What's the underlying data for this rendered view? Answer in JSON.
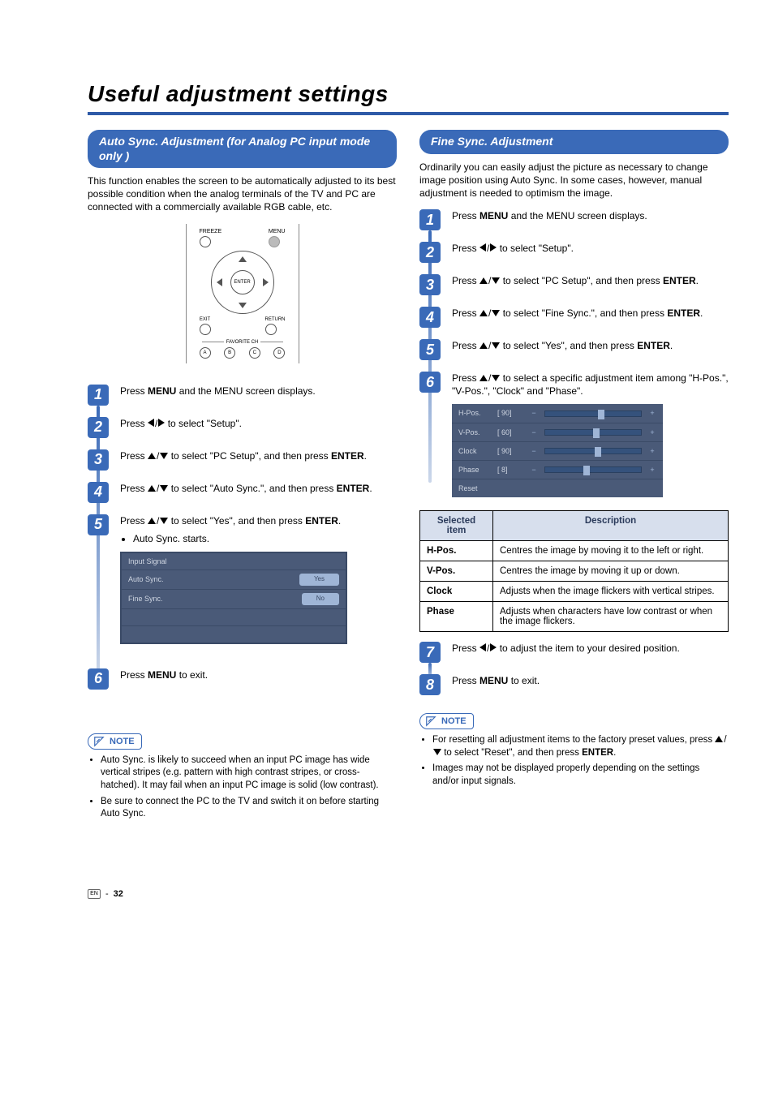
{
  "page_title": "Useful adjustment settings",
  "left": {
    "heading": "Auto Sync. Adjustment (for Analog PC input mode only )",
    "intro": "This function enables the screen to be automatically adjusted to its best possible condition when the analog terminals of the TV and PC are connected with a commercially available RGB cable, etc.",
    "remote": {
      "freeze": "FREEZE",
      "menu": "MENU",
      "enter": "ENTER",
      "exit": "EXIT",
      "return": "RETURN",
      "favorite": "FAVORITE CH",
      "fav_a": "A",
      "fav_b": "B",
      "fav_c": "C",
      "fav_d": "D"
    },
    "steps": [
      {
        "n": "1",
        "pre": "Press ",
        "bold": "MENU",
        "post": " and the MENU screen displays."
      },
      {
        "n": "2",
        "pre": "Press ",
        "glyph": "lr",
        "post2": " to select \"Setup\"."
      },
      {
        "n": "3",
        "pre": "Press ",
        "glyph": "ud",
        "mid": " to select \"PC Setup\", and then press ",
        "bold": "ENTER",
        "post": "."
      },
      {
        "n": "4",
        "pre": "Press ",
        "glyph": "ud",
        "mid": " to select \"Auto Sync.\", and then press ",
        "bold": "ENTER",
        "post": "."
      },
      {
        "n": "5",
        "pre": "Press ",
        "glyph": "ud",
        "mid": " to select \"Yes\", and then press ",
        "bold": "ENTER",
        "post": ".",
        "bullet": "Auto Sync. starts."
      },
      {
        "n": "6",
        "pre": "Press ",
        "bold": "MENU",
        "post": " to exit."
      }
    ],
    "menu_shot": {
      "rows": [
        {
          "label": "Input Signal"
        },
        {
          "label": "Auto Sync.",
          "btn": "Yes"
        },
        {
          "label": "Fine Sync.",
          "btn": "No"
        }
      ],
      "bg": "#4a5a78",
      "btn_bg": "#9fb5d6"
    },
    "notes_label": "NOTE",
    "notes": [
      "Auto Sync. is likely to succeed when an input PC image has wide vertical stripes (e.g. pattern with high contrast stripes, or cross-hatched). It may fail when an input PC image is solid (low contrast).",
      "Be sure to connect the PC to the TV and switch it on before starting Auto Sync."
    ]
  },
  "right": {
    "heading": "Fine Sync. Adjustment",
    "intro": "Ordinarily you can easily adjust the picture as necessary to change image position using Auto Sync. In some cases, however, manual adjustment is needed to optimism the image.",
    "steps_top": [
      {
        "n": "1",
        "pre": "Press ",
        "bold": "MENU",
        "post": " and the MENU screen displays."
      },
      {
        "n": "2",
        "pre": "Press ",
        "glyph": "lr",
        "post2": " to select \"Setup\"."
      },
      {
        "n": "3",
        "pre": "Press ",
        "glyph": "ud",
        "mid": " to select \"PC Setup\", and then press ",
        "bold": "ENTER",
        "post": "."
      },
      {
        "n": "4",
        "pre": "Press ",
        "glyph": "ud",
        "mid": " to select \"Fine Sync.\", and then press ",
        "bold": "ENTER",
        "post": "."
      },
      {
        "n": "5",
        "pre": "Press ",
        "glyph": "ud",
        "mid": " to select \"Yes\", and then press ",
        "bold": "ENTER",
        "post": "."
      },
      {
        "n": "6",
        "pre": "Press ",
        "glyph": "ud",
        "mid": " to select a specific adjustment item among \"H-Pos.\", \"V-Pos.\", \"Clock\" and \"Phase\"."
      }
    ],
    "sliders": {
      "rows": [
        {
          "label": "H-Pos.",
          "val": "[ 90]",
          "thumb": 55
        },
        {
          "label": "V-Pos.",
          "val": "[ 60]",
          "thumb": 50
        },
        {
          "label": "Clock",
          "val": "[ 90]",
          "thumb": 52
        },
        {
          "label": "Phase",
          "val": "[   8]",
          "thumb": 40
        },
        {
          "label": "Reset",
          "val": ""
        }
      ],
      "bg": "#4a5a78"
    },
    "table": {
      "head_item": "Selected item",
      "head_desc": "Description",
      "rows": [
        {
          "item": "H-Pos.",
          "desc": "Centres the image by moving it to the left or right."
        },
        {
          "item": "V-Pos.",
          "desc": "Centres the image by moving it up or down."
        },
        {
          "item": "Clock",
          "desc": "Adjusts when the image flickers with vertical stripes."
        },
        {
          "item": "Phase",
          "desc": "Adjusts when characters have low contrast or when the image flickers."
        }
      ]
    },
    "steps_bottom": [
      {
        "n": "7",
        "pre": "Press ",
        "glyph": "lr",
        "post2": " to adjust the item to your desired position."
      },
      {
        "n": "8",
        "pre": "Press ",
        "bold": "MENU",
        "post": " to exit."
      }
    ],
    "notes_label": "NOTE",
    "notes": [
      {
        "pre": "For resetting all adjustment items to the factory preset values, press ",
        "glyph": "ud",
        "mid": " to select \"Reset\", and then press ",
        "bold": "ENTER",
        "post": "."
      },
      {
        "plain": "Images may not be displayed properly depending on the settings and/or input signals."
      }
    ]
  },
  "page_number": "32",
  "page_number_prefix": "EN",
  "colors": {
    "accent": "#3a6ab8",
    "rule": "#2e5aa7"
  }
}
